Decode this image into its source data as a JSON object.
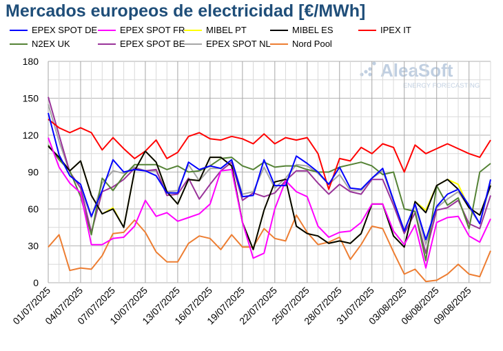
{
  "chart_data": {
    "type": "line",
    "title": "Mercados europeos de electricidad [€/MWh]",
    "xlabel": "",
    "ylabel": "",
    "ylim": [
      0,
      180
    ],
    "yticks": [
      0,
      30,
      60,
      90,
      120,
      150,
      180
    ],
    "grid": true,
    "legend": "top",
    "x": [
      "01/07/2025",
      "02/07/2025",
      "03/07/2025",
      "04/07/2025",
      "05/07/2025",
      "06/07/2025",
      "07/07/2025",
      "08/07/2025",
      "09/07/2025",
      "10/07/2025",
      "11/07/2025",
      "12/07/2025",
      "13/07/2025",
      "14/07/2025",
      "15/07/2025",
      "16/07/2025",
      "17/07/2025",
      "18/07/2025",
      "19/07/2025",
      "20/07/2025",
      "21/07/2025",
      "22/07/2025",
      "23/07/2025",
      "24/07/2025",
      "25/07/2025",
      "26/07/2025",
      "27/07/2025",
      "28/07/2025",
      "29/07/2025",
      "30/07/2025",
      "31/07/2025",
      "01/08/2025",
      "02/08/2025",
      "03/08/2025",
      "04/08/2025",
      "05/08/2025",
      "06/08/2025",
      "07/08/2025",
      "08/08/2025",
      "09/08/2025",
      "10/08/2025",
      "11/08/2025"
    ],
    "xtick_labels": [
      "01/07/2025",
      "04/07/2025",
      "07/07/2025",
      "10/07/2025",
      "13/07/2025",
      "16/07/2025",
      "19/07/2025",
      "22/07/2025",
      "25/07/2025",
      "28/07/2025",
      "31/07/2025",
      "03/08/2025",
      "06/08/2025",
      "09/08/2025"
    ],
    "series": [
      {
        "name": "EPEX SPOT DE",
        "color": "#0000FF",
        "values": [
          138,
          104,
          87,
          80,
          54,
          75,
          100,
          90,
          92,
          91,
          87,
          73,
          73,
          98,
          92,
          95,
          93,
          100,
          70,
          71,
          100,
          79,
          79,
          103,
          97,
          90,
          80,
          94,
          77,
          76,
          85,
          93,
          67,
          42,
          64,
          35,
          62,
          72,
          76,
          63,
          48,
          84
        ]
      },
      {
        "name": "EPEX SPOT FR",
        "color": "#FF00FF",
        "values": [
          118,
          94,
          81,
          73,
          31,
          31,
          36,
          37,
          46,
          67,
          54,
          57,
          50,
          53,
          56,
          64,
          91,
          92,
          49,
          20,
          24,
          60,
          83,
          74,
          70,
          46,
          37,
          41,
          42,
          49,
          64,
          64,
          42,
          31,
          47,
          12,
          49,
          53,
          54,
          38,
          33,
          52
        ]
      },
      {
        "name": "MIBEL PT",
        "color": "#FFFF00",
        "values": [
          111,
          102,
          91,
          99,
          71,
          56,
          61,
          45,
          91,
          107,
          98,
          74,
          64,
          84,
          83,
          102,
          102,
          95,
          49,
          27,
          59,
          82,
          84,
          46,
          40,
          38,
          32,
          34,
          32,
          40,
          64,
          64,
          38,
          29,
          66,
          59,
          79,
          84,
          80,
          61,
          55,
          79
        ]
      },
      {
        "name": "MIBEL ES",
        "color": "#000000",
        "values": [
          111,
          102,
          91,
          99,
          71,
          56,
          60,
          45,
          91,
          107,
          98,
          74,
          64,
          84,
          83,
          102,
          102,
          95,
          49,
          27,
          59,
          82,
          84,
          46,
          40,
          38,
          32,
          34,
          32,
          40,
          64,
          64,
          38,
          29,
          66,
          57,
          79,
          84,
          76,
          61,
          55,
          79
        ]
      },
      {
        "name": "IPEX IT",
        "color": "#FF0000",
        "values": [
          133,
          126,
          122,
          126,
          122,
          108,
          118,
          109,
          101,
          107,
          116,
          101,
          106,
          119,
          122,
          117,
          116,
          119,
          117,
          113,
          121,
          113,
          118,
          116,
          118,
          105,
          76,
          101,
          99,
          110,
          105,
          113,
          110,
          90,
          112,
          105,
          109,
          113,
          109,
          105,
          102,
          116
        ]
      },
      {
        "name": "N2EX UK",
        "color": "#548235",
        "values": [
          112,
          100,
          91,
          70,
          39,
          85,
          75,
          87,
          96,
          96,
          96,
          92,
          95,
          90,
          91,
          95,
          101,
          102,
          95,
          92,
          98,
          94,
          95,
          95,
          92,
          90,
          90,
          94,
          96,
          98,
          95,
          88,
          90,
          60,
          58,
          18,
          79,
          63,
          69,
          44,
          90,
          97
        ]
      },
      {
        "name": "EPEX SPOT BE",
        "color": "#993399",
        "values": [
          151,
          120,
          90,
          77,
          41,
          74,
          78,
          84,
          93,
          91,
          92,
          71,
          72,
          85,
          68,
          80,
          91,
          98,
          67,
          73,
          70,
          73,
          83,
          91,
          91,
          81,
          72,
          80,
          74,
          72,
          84,
          84,
          63,
          40,
          57,
          24,
          59,
          61,
          67,
          48,
          44,
          71
        ]
      },
      {
        "name": "EPEX SPOT NL",
        "color": "#A6A6A6",
        "values": [
          145,
          115,
          90,
          77,
          53,
          81,
          91,
          89,
          94,
          91,
          91,
          74,
          75,
          96,
          83,
          93,
          93,
          100,
          72,
          74,
          94,
          77,
          85,
          96,
          95,
          89,
          80,
          88,
          75,
          75,
          85,
          91,
          66,
          43,
          63,
          31,
          61,
          68,
          74,
          61,
          48,
          81
        ]
      },
      {
        "name": "Nord Pool",
        "color": "#ED7D31",
        "values": [
          29,
          39,
          10,
          12,
          11,
          22,
          40,
          41,
          51,
          41,
          25,
          17,
          17,
          32,
          38,
          36,
          27,
          39,
          29,
          29,
          44,
          36,
          34,
          55,
          41,
          31,
          33,
          37,
          19,
          31,
          46,
          44,
          25,
          7,
          11,
          1,
          2,
          7,
          15,
          7,
          5,
          26
        ]
      }
    ]
  },
  "watermark": {
    "brand": "AleaSoft",
    "tagline": "ENERGY FORECASTING"
  }
}
